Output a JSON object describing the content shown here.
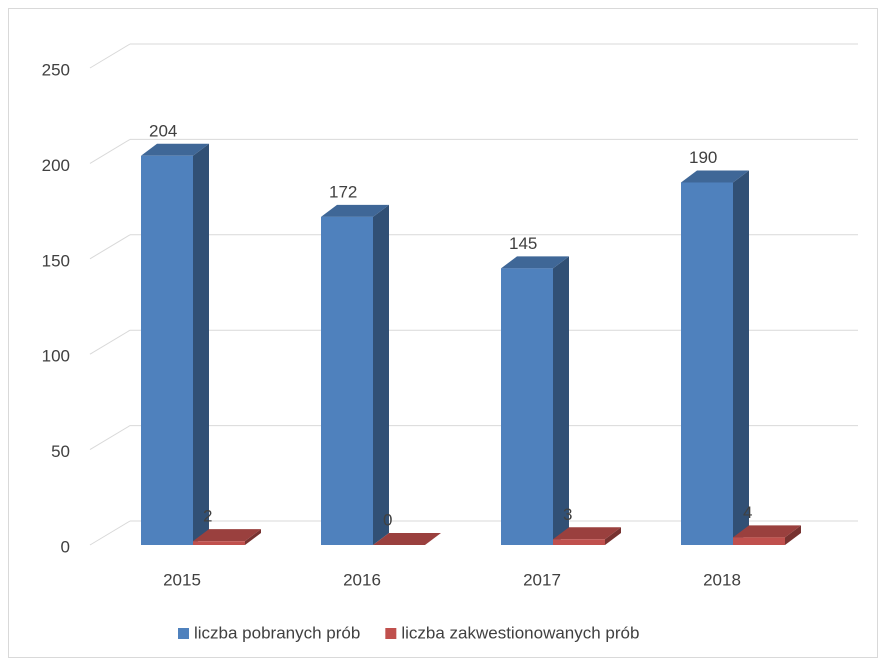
{
  "chart_data": {
    "type": "bar3d",
    "categories": [
      "2015",
      "2016",
      "2017",
      "2018"
    ],
    "series": [
      {
        "name": "liczba pobranych prób",
        "color": "#4f81bd",
        "values": [
          204,
          172,
          145,
          190
        ]
      },
      {
        "name": "liczba zakwestionowanych prób",
        "color": "#c0504d",
        "values": [
          2,
          0,
          3,
          4
        ]
      }
    ],
    "ylim": [
      0,
      250
    ],
    "yticks": [
      0,
      50,
      100,
      150,
      200,
      250
    ],
    "grid": true,
    "legend": "bottom"
  }
}
